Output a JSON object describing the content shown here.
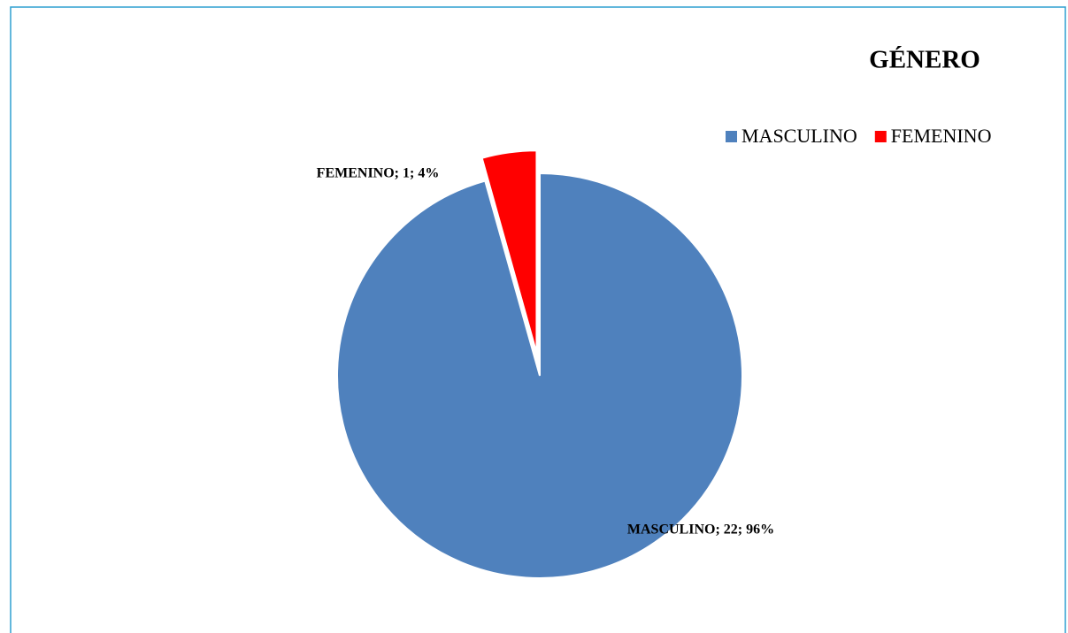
{
  "chart_data": {
    "type": "pie",
    "title": "GÉNERO",
    "categories": [
      "MASCULINO",
      "FEMENINO"
    ],
    "values": [
      22,
      1
    ],
    "value_labels": [
      "MASCULINO; 22; 96%",
      "FEMENINO; 1; 4%"
    ],
    "colors": [
      "#4f81bd",
      "#ff0000"
    ],
    "legend": "top-right"
  }
}
